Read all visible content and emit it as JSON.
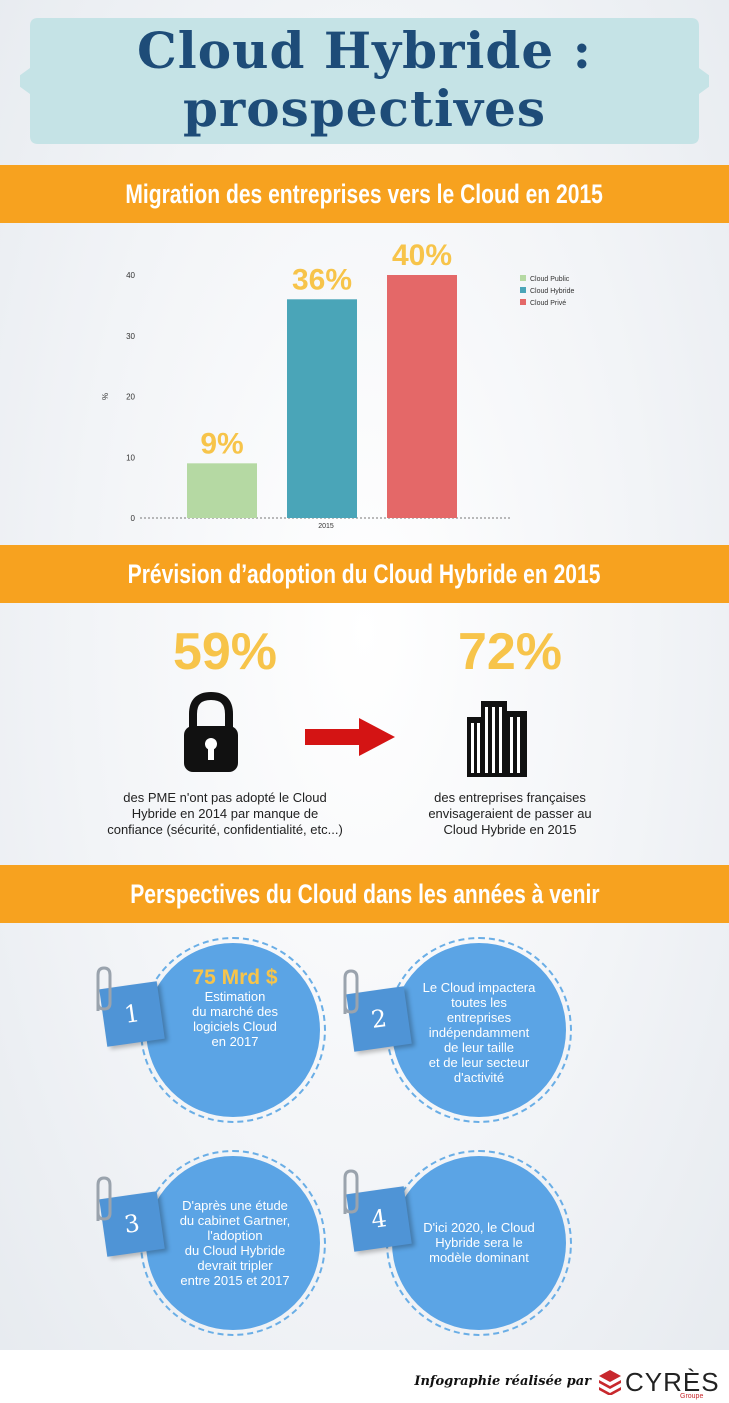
{
  "title": {
    "line1": "Cloud Hybride :",
    "line2": "prospectives"
  },
  "sections": {
    "s1": "Migration des entreprises vers le Cloud en 2015",
    "s2": "Prévision d’adoption du Cloud Hybride en 2015",
    "s3": "Perspectives du Cloud dans les années à venir"
  },
  "chart_data": {
    "type": "bar",
    "categories": [
      "2015"
    ],
    "series": [
      {
        "name": "Cloud Public",
        "values": [
          9
        ],
        "color": "#b5d9a3",
        "label": "9%"
      },
      {
        "name": "Cloud Hybride",
        "values": [
          36
        ],
        "color": "#4aa5b8",
        "label": "36%"
      },
      {
        "name": "Cloud Privé",
        "values": [
          40
        ],
        "color": "#e46868",
        "label": "40%"
      }
    ],
    "ylabel": "%",
    "ylim": [
      0,
      40
    ],
    "yticks": [
      "0",
      "10",
      "20",
      "30",
      "40"
    ],
    "legend": "top-right"
  },
  "adoption": {
    "left": {
      "pct": "59%",
      "icon": "padlock-icon",
      "caption": [
        "des PME n'ont pas adopté le Cloud",
        "Hybride en 2014 par manque de",
        "confiance (sécurité, confidentialité, etc...)"
      ]
    },
    "arrow": "right-arrow-icon",
    "right": {
      "pct": "72%",
      "icon": "buildings-icon",
      "caption": [
        "des entreprises françaises",
        "envisageraient de passer au",
        "Cloud Hybride en 2015"
      ]
    }
  },
  "perspectives": [
    {
      "num": "1",
      "highlight": "75 Mrd $",
      "lines": [
        "Estimation",
        "du marché des",
        "logiciels Cloud",
        "en 2017"
      ]
    },
    {
      "num": "2",
      "lines": [
        "Le Cloud impactera",
        "toutes les",
        "entreprises",
        "indépendamment",
        "de leur taille",
        "et de leur secteur",
        "d'activité"
      ]
    },
    {
      "num": "3",
      "lines": [
        "D'après une étude",
        "du cabinet Gartner,",
        "l'adoption",
        "du Cloud Hybride",
        "devrait tripler",
        "entre 2015 et 2017"
      ]
    },
    {
      "num": "4",
      "lines": [
        "D'ici 2020, le Cloud",
        "Hybride sera le",
        "modèle dominant"
      ]
    }
  ],
  "footer": {
    "credit": "Infographie réalisée par",
    "logo": "CYRÈS",
    "logo_sub": "Groupe"
  },
  "colors": {
    "orange": "#f7a21f",
    "navy": "#1e4c78",
    "yellow": "#f7c44a",
    "blue": "#5ba4e5",
    "red": "#d41414"
  }
}
